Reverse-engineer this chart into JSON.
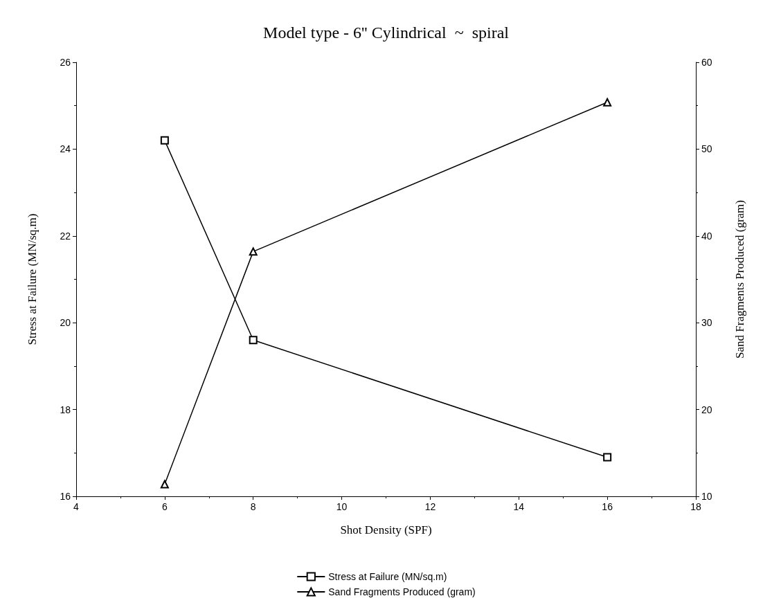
{
  "chart_data": {
    "type": "line",
    "title": "Model type - 6'' Cylindrical  ~  spiral",
    "xlabel": "Shot Density (SPF)",
    "ylabel": "Stress at Failure (MN/sq.m)",
    "y2label": "Sand Fragments Produced (gram)",
    "x": [
      6,
      8,
      16
    ],
    "series": [
      {
        "name": "Stress at Failure (MN/sq.m)",
        "color": "#000000",
        "marker": "square",
        "values": [
          24.2,
          19.6,
          16.9
        ]
      },
      {
        "name": "Sand Fragments Produced (gram)",
        "color": "#000000",
        "marker": "triangle",
        "axis": "y2",
        "values": [
          11.4,
          38.2,
          55.4
        ]
      }
    ],
    "xlim": [
      4,
      18
    ],
    "xticks": [
      4,
      6,
      8,
      10,
      12,
      14,
      16,
      18
    ],
    "ylim": [
      16,
      26
    ],
    "yticks": [
      16,
      18,
      20,
      22,
      24,
      26
    ],
    "y2lim": [
      10,
      60
    ],
    "y2ticks": [
      10,
      20,
      30,
      40,
      50,
      60
    ],
    "grid": false,
    "legend": "bottom",
    "line_style": "solid"
  }
}
